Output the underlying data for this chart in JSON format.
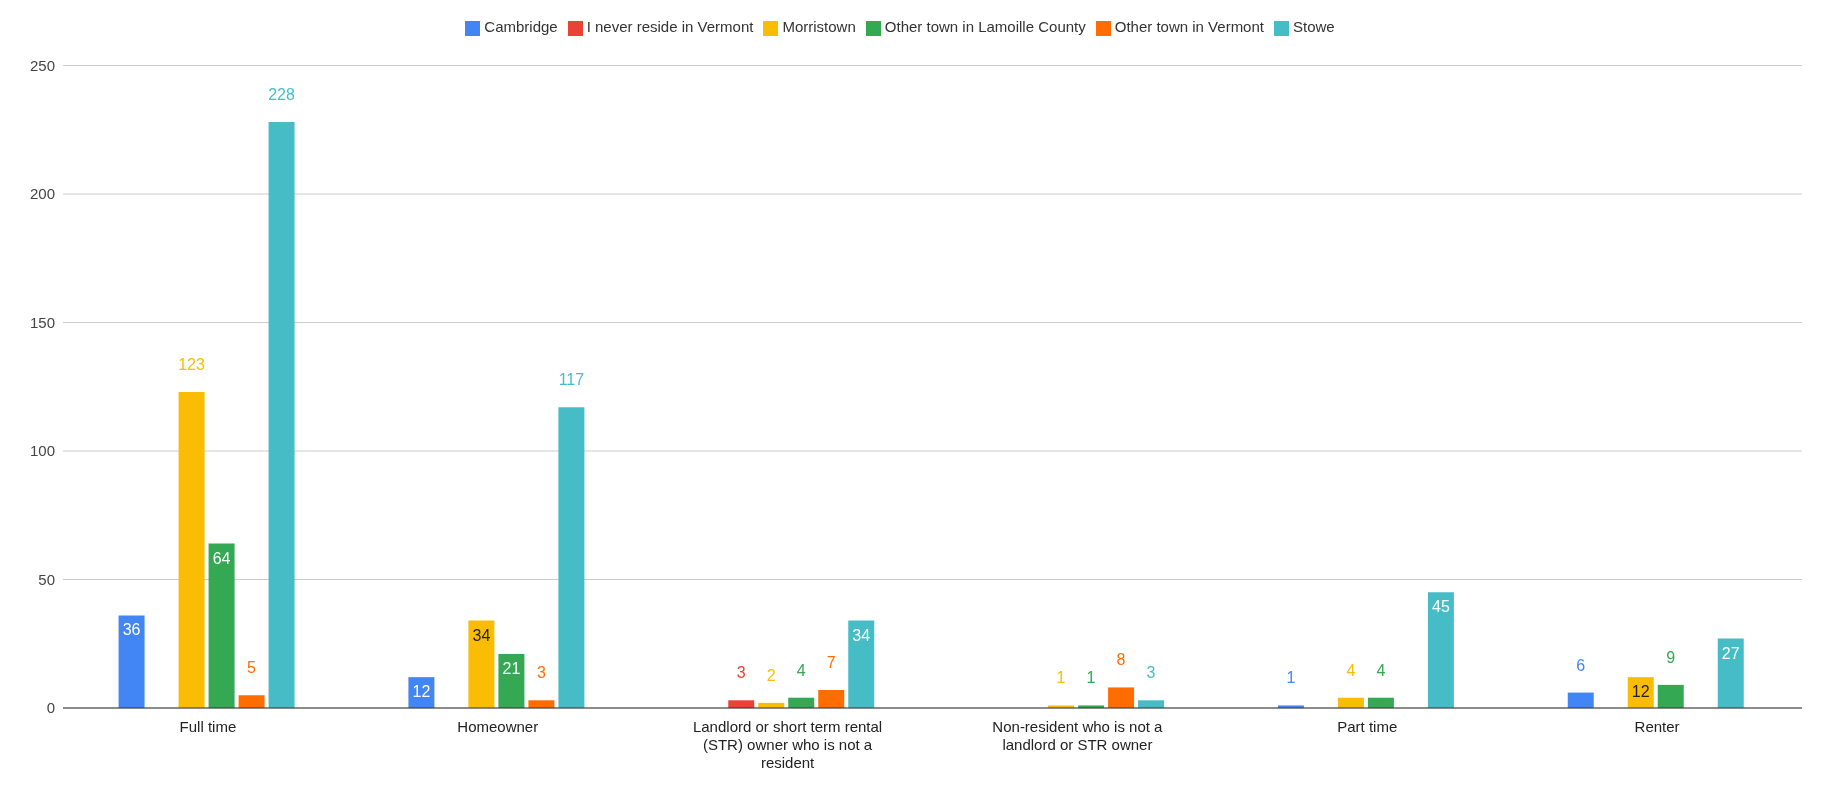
{
  "chart_data": {
    "type": "bar",
    "categories": [
      "Full time",
      "Homeowner",
      "Landlord or short term rental (STR) owner who is not a resident",
      "Non-resident who is not a landlord or STR owner",
      "Part time",
      "Renter"
    ],
    "series": [
      {
        "name": "Cambridge",
        "color": "#4285f4",
        "values": [
          36,
          12,
          null,
          null,
          1,
          6
        ]
      },
      {
        "name": "I never reside in Vermont",
        "color": "#ea4335",
        "values": [
          null,
          null,
          3,
          null,
          null,
          null
        ]
      },
      {
        "name": "Morristown",
        "color": "#fbbc04",
        "values": [
          123,
          34,
          2,
          1,
          4,
          12
        ]
      },
      {
        "name": "Other town in Lamoille County",
        "color": "#34a853",
        "values": [
          64,
          21,
          4,
          1,
          4,
          9
        ]
      },
      {
        "name": "Other town in Vermont",
        "color": "#ff6d01",
        "values": [
          5,
          3,
          7,
          8,
          null,
          null
        ]
      },
      {
        "name": "Stowe",
        "color": "#46bdc6",
        "values": [
          228,
          117,
          34,
          3,
          45,
          27
        ]
      }
    ],
    "ylim": [
      0,
      250
    ],
    "yticks": [
      0,
      50,
      100,
      150,
      200,
      250
    ],
    "grid": "y",
    "legend": "top",
    "data_labels": true
  }
}
